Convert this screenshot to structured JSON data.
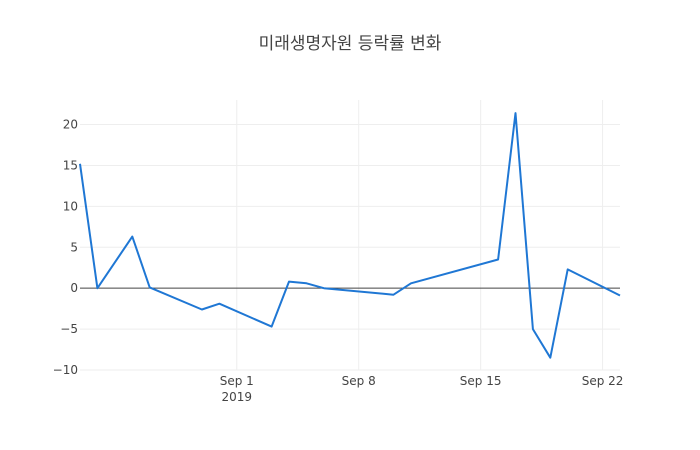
{
  "chart_data": {
    "type": "line",
    "title": "미래생명자원 등락률 변화",
    "xlabel": "",
    "ylabel": "",
    "x_type": "date",
    "xlim": [
      "2019-08-23",
      "2019-09-23"
    ],
    "ylim": [
      -10,
      23
    ],
    "x_ticks": [
      {
        "date": "2019-09-01",
        "label": "Sep 1",
        "sublabel": "2019"
      },
      {
        "date": "2019-09-08",
        "label": "Sep 8",
        "sublabel": ""
      },
      {
        "date": "2019-09-15",
        "label": "Sep 15",
        "sublabel": ""
      },
      {
        "date": "2019-09-22",
        "label": "Sep 22",
        "sublabel": ""
      }
    ],
    "y_ticks": [
      {
        "value": -10,
        "label": "−10"
      },
      {
        "value": -5,
        "label": "−5"
      },
      {
        "value": 0,
        "label": "0"
      },
      {
        "value": 5,
        "label": "5"
      },
      {
        "value": 10,
        "label": "10"
      },
      {
        "value": 15,
        "label": "15"
      },
      {
        "value": 20,
        "label": "20"
      }
    ],
    "grid": true,
    "color": "#1f77d4",
    "series": [
      {
        "x": [
          "2019-08-23",
          "2019-08-24",
          "2019-08-26",
          "2019-08-27",
          "2019-08-30",
          "2019-08-31",
          "2019-09-03",
          "2019-09-04",
          "2019-09-05",
          "2019-09-06",
          "2019-09-10",
          "2019-09-11",
          "2019-09-16",
          "2019-09-17",
          "2019-09-18",
          "2019-09-19",
          "2019-09-20",
          "2019-09-23"
        ],
        "y": [
          15.2,
          0.0,
          6.3,
          0.1,
          -2.6,
          -1.9,
          -4.7,
          0.8,
          0.6,
          0.0,
          -0.8,
          0.6,
          3.5,
          21.4,
          -5.0,
          -8.5,
          2.3,
          -0.9
        ]
      }
    ]
  }
}
